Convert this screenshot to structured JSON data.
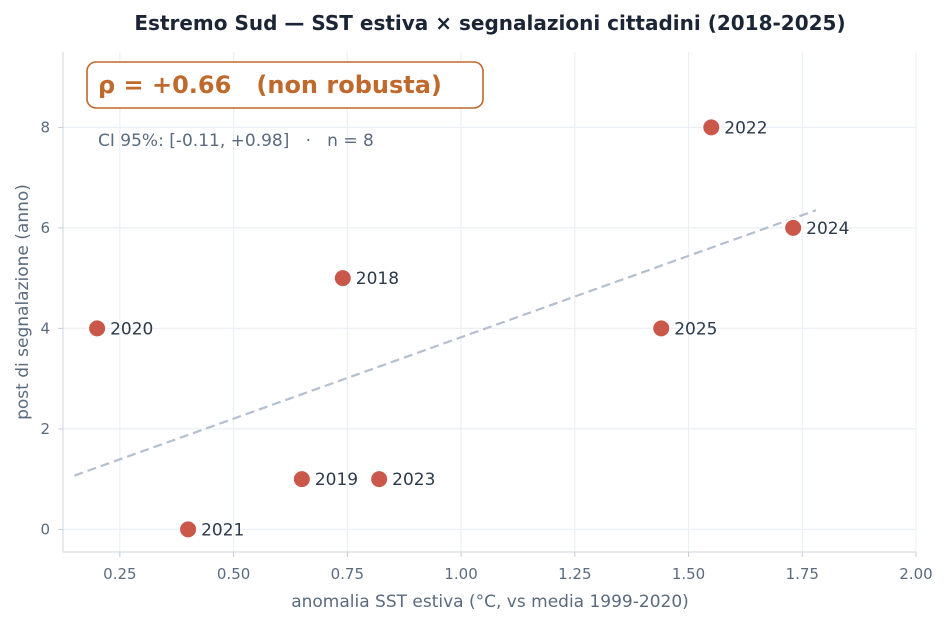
{
  "chart_data": {
    "type": "scatter",
    "title": "Estremo Sud — SST estiva × segnalazioni cittadini (2018-2025)",
    "xlabel": "anomalia SST estiva (°C, vs media 1999-2020)",
    "ylabel": "post di segnalazione (anno)",
    "xlim": [
      0.125,
      2.0
    ],
    "ylim": [
      -0.45,
      9.5
    ],
    "x_ticks": [
      "0.25",
      "0.50",
      "0.75",
      "1.00",
      "1.25",
      "1.50",
      "1.75",
      "2.00"
    ],
    "x_tick_values": [
      0.25,
      0.5,
      0.75,
      1.0,
      1.25,
      1.5,
      1.75,
      2.0
    ],
    "y_ticks": [
      "0",
      "2",
      "4",
      "6",
      "8"
    ],
    "y_tick_values": [
      0,
      2,
      4,
      6,
      8
    ],
    "grid": true,
    "points": [
      {
        "label": "2018",
        "x": 0.74,
        "y": 5
      },
      {
        "label": "2019",
        "x": 0.65,
        "y": 1
      },
      {
        "label": "2020",
        "x": 0.2,
        "y": 4
      },
      {
        "label": "2021",
        "x": 0.4,
        "y": 0
      },
      {
        "label": "2022",
        "x": 1.55,
        "y": 8
      },
      {
        "label": "2023",
        "x": 0.82,
        "y": 1
      },
      {
        "label": "2024",
        "x": 1.73,
        "y": 6
      },
      {
        "label": "2025",
        "x": 1.44,
        "y": 4
      }
    ],
    "trend_line": {
      "x": [
        0.15,
        1.78
      ],
      "y": [
        1.07,
        6.35
      ]
    },
    "point_color": "#c9574a",
    "trend_color": "#b4bfcf",
    "annotation": {
      "rho_text": "ρ = +0.66   (non robusta)",
      "ci_text": "CI 95%: [-0.11, +0.98]   ·   n = 8",
      "accent_color": "#c0692d"
    }
  }
}
